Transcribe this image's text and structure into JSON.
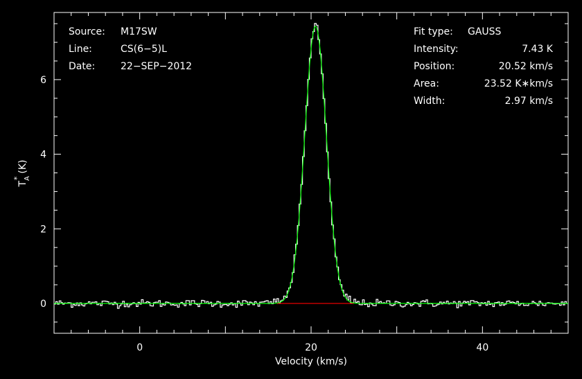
{
  "chart_data": {
    "type": "line",
    "xlabel": "Velocity (km/s)",
    "ylabel_main": "T",
    "ylabel_sup": "*",
    "ylabel_sub": "A",
    "ylabel_unit": "(K)",
    "xlim": [
      -10,
      50
    ],
    "ylim": [
      -0.8,
      7.8
    ],
    "xticks": [
      0,
      20,
      40
    ],
    "yticks": [
      0,
      2,
      4,
      6
    ],
    "grid": false,
    "info_left": [
      {
        "label": "Source:",
        "value": "M17SW"
      },
      {
        "label": "Line:",
        "value": "CS(6−5)L"
      },
      {
        "label": "Date:",
        "value": "22−SEP−2012"
      }
    ],
    "info_right": [
      {
        "label": "Fit type:",
        "value": "GAUSS"
      },
      {
        "label": "Intensity:",
        "value": "7.43 K"
      },
      {
        "label": "Position:",
        "value": "20.52 km/s"
      },
      {
        "label": "Area:",
        "value": "23.52 K∗km/s"
      },
      {
        "label": "Width:",
        "value": "2.97 km/s"
      }
    ],
    "fit": {
      "amplitude": 7.43,
      "center": 20.52,
      "fwhm": 2.97
    },
    "baseline_segment": {
      "x": [
        16,
        25
      ],
      "y": [
        0,
        0
      ]
    },
    "noise_rms": 0.05,
    "channel_width": 0.2,
    "colors": {
      "spectrum": "#ffffff",
      "fit": "#00ff00",
      "baseline": "#ff0000",
      "frame": "#ffffff"
    },
    "series": [
      {
        "name": "spectrum",
        "color": "#ffffff"
      },
      {
        "name": "fit",
        "color": "#00ff00"
      },
      {
        "name": "baseline",
        "color": "#ff0000"
      }
    ]
  }
}
